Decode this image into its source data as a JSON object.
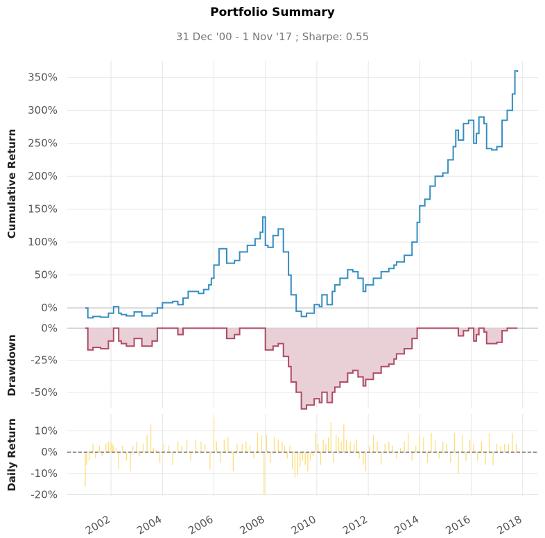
{
  "title": "Portfolio Summary",
  "subtitle": "31 Dec '00 -  1 Nov '17 ;  Sharpe: 0.55",
  "colors": {
    "cumulative": "#348dc1",
    "drawdown_line": "#af4b64",
    "drawdown_fill": "#e8d0d6",
    "daily": "#fedd78",
    "grid": "#e5e5e5",
    "zero": "#cccccc"
  },
  "x_axis": {
    "ticks": [
      2002,
      2004,
      2006,
      2008,
      2010,
      2012,
      2014,
      2016,
      2018
    ],
    "tick_labels": [
      "2002",
      "2004",
      "2006",
      "2008",
      "2010",
      "2012",
      "2014",
      "2016",
      "2018"
    ],
    "range": [
      2000.3,
      2018.6
    ]
  },
  "chart_data": [
    {
      "type": "line",
      "ylabel": "Cumulative Return",
      "yticks": [
        0,
        50,
        100,
        150,
        200,
        250,
        300,
        350
      ],
      "ytick_labels": [
        "0%",
        "50%",
        "100%",
        "150%",
        "200%",
        "250%",
        "300%",
        "350%"
      ],
      "ylim": [
        -23,
        375
      ],
      "series": [
        {
          "x": [
            2001.0,
            2001.1,
            2001.3,
            2001.6,
            2001.9,
            2002.1,
            2002.3,
            2002.4,
            2002.6,
            2002.9,
            2003.2,
            2003.6,
            2003.8,
            2004.0,
            2004.4,
            2004.6,
            2004.8,
            2005.0,
            2005.4,
            2005.6,
            2005.8,
            2005.9,
            2006.0,
            2006.2,
            2006.5,
            2006.8,
            2007.0,
            2007.3,
            2007.6,
            2007.8,
            2007.9,
            2008.0,
            2008.1,
            2008.3,
            2008.5,
            2008.7,
            2008.9,
            2009.0,
            2009.2,
            2009.4,
            2009.6,
            2009.9,
            2010.1,
            2010.2,
            2010.4,
            2010.6,
            2010.7,
            2010.9,
            2011.2,
            2011.4,
            2011.6,
            2011.8,
            2011.9,
            2012.2,
            2012.5,
            2012.8,
            2013.0,
            2013.1,
            2013.4,
            2013.7,
            2013.9,
            2014.0,
            2014.2,
            2014.4,
            2014.6,
            2014.9,
            2015.1,
            2015.3,
            2015.4,
            2015.5,
            2015.7,
            2015.9,
            2016.1,
            2016.2,
            2016.3,
            2016.5,
            2016.6,
            2016.8,
            2017.0,
            2017.2,
            2017.4,
            2017.6,
            2017.7,
            2017.8
          ],
          "y": [
            0,
            -15,
            -13,
            -14,
            -8,
            2,
            -8,
            -10,
            -12,
            -6,
            -12,
            -8,
            0,
            8,
            10,
            5,
            15,
            25,
            22,
            28,
            35,
            45,
            65,
            90,
            68,
            72,
            85,
            95,
            105,
            115,
            138,
            95,
            92,
            110,
            120,
            85,
            50,
            20,
            -5,
            -13,
            -8,
            5,
            2,
            20,
            5,
            25,
            35,
            45,
            58,
            55,
            45,
            25,
            35,
            45,
            55,
            60,
            65,
            70,
            80,
            100,
            130,
            155,
            165,
            185,
            200,
            205,
            225,
            245,
            270,
            255,
            280,
            285,
            250,
            265,
            290,
            280,
            242,
            240,
            245,
            285,
            300,
            325,
            360,
            358
          ]
        }
      ]
    },
    {
      "type": "area",
      "ylabel": "Drawdown",
      "yticks": [
        0,
        -25,
        -50
      ],
      "ytick_labels": [
        "0%",
        "-25%",
        "-50%"
      ],
      "ylim": [
        -62,
        4
      ],
      "series": [
        {
          "x": [
            2001.0,
            2001.1,
            2001.3,
            2001.6,
            2001.9,
            2002.1,
            2002.3,
            2002.4,
            2002.6,
            2002.9,
            2003.2,
            2003.6,
            2003.8,
            2004.0,
            2004.4,
            2004.6,
            2004.8,
            2005.0,
            2005.4,
            2005.6,
            2005.8,
            2005.9,
            2006.0,
            2006.2,
            2006.5,
            2006.8,
            2007.0,
            2007.3,
            2007.6,
            2007.8,
            2007.9,
            2008.0,
            2008.1,
            2008.3,
            2008.5,
            2008.7,
            2008.9,
            2009.0,
            2009.2,
            2009.4,
            2009.6,
            2009.9,
            2010.1,
            2010.2,
            2010.4,
            2010.6,
            2010.7,
            2010.9,
            2011.2,
            2011.4,
            2011.6,
            2011.8,
            2011.9,
            2012.2,
            2012.5,
            2012.8,
            2013.0,
            2013.1,
            2013.4,
            2013.7,
            2013.9,
            2014.0,
            2014.2,
            2014.4,
            2014.6,
            2014.9,
            2015.1,
            2015.3,
            2015.4,
            2015.5,
            2015.7,
            2015.9,
            2016.1,
            2016.2,
            2016.3,
            2016.5,
            2016.6,
            2016.8,
            2017.0,
            2017.2,
            2017.4,
            2017.6,
            2017.7,
            2017.8
          ],
          "y": [
            0,
            -17,
            -15,
            -16,
            -10,
            0,
            -10,
            -12,
            -14,
            -8,
            -14,
            -10,
            0,
            0,
            0,
            -5,
            0,
            0,
            0,
            0,
            0,
            0,
            0,
            0,
            -8,
            -5,
            0,
            0,
            0,
            0,
            0,
            -17,
            -17,
            -14,
            -12,
            -22,
            -30,
            -42,
            -50,
            -63,
            -60,
            -55,
            -58,
            -50,
            -58,
            -50,
            -46,
            -42,
            -35,
            -33,
            -38,
            -45,
            -40,
            -35,
            -30,
            -28,
            -24,
            -20,
            -16,
            -8,
            0,
            0,
            0,
            0,
            0,
            0,
            0,
            0,
            0,
            -6,
            -2,
            0,
            -10,
            -5,
            0,
            -3,
            -12,
            -12,
            -11,
            -2,
            0,
            0,
            0,
            0
          ]
        }
      ]
    },
    {
      "type": "bar",
      "ylabel": "Daily Return",
      "yticks": [
        10,
        0,
        -10,
        -20
      ],
      "ytick_labels": [
        "10%",
        "0%",
        "-10%",
        "-20%"
      ],
      "ylim": [
        -20.5,
        18
      ],
      "series": [
        {
          "x": [
            2001.0,
            2001.05,
            2001.15,
            2001.3,
            2001.4,
            2001.55,
            2001.65,
            2001.8,
            2001.9,
            2002.0,
            2002.05,
            2002.1,
            2002.2,
            2002.3,
            2002.45,
            2002.6,
            2002.75,
            2002.85,
            2003.0,
            2003.1,
            2003.25,
            2003.4,
            2003.55,
            2003.65,
            2003.75,
            2003.9,
            2004.05,
            2004.25,
            2004.4,
            2004.6,
            2004.75,
            2004.95,
            2005.1,
            2005.3,
            2005.5,
            2005.65,
            2005.85,
            2006.0,
            2006.1,
            2006.25,
            2006.4,
            2006.55,
            2006.75,
            2006.9,
            2007.1,
            2007.25,
            2007.4,
            2007.55,
            2007.7,
            2007.85,
            2007.95,
            2008.05,
            2008.2,
            2008.35,
            2008.5,
            2008.65,
            2008.75,
            2008.85,
            2008.95,
            2009.05,
            2009.15,
            2009.25,
            2009.35,
            2009.45,
            2009.55,
            2009.65,
            2009.75,
            2009.85,
            2009.95,
            2010.05,
            2010.15,
            2010.25,
            2010.35,
            2010.45,
            2010.55,
            2010.65,
            2010.75,
            2010.85,
            2010.95,
            2011.05,
            2011.15,
            2011.3,
            2011.45,
            2011.55,
            2011.65,
            2011.8,
            2011.9,
            2012.05,
            2012.2,
            2012.35,
            2012.5,
            2012.65,
            2012.8,
            2012.95,
            2013.1,
            2013.25,
            2013.4,
            2013.55,
            2013.7,
            2013.85,
            2014.0,
            2014.15,
            2014.3,
            2014.45,
            2014.6,
            2014.75,
            2014.9,
            2015.05,
            2015.2,
            2015.35,
            2015.5,
            2015.65,
            2015.8,
            2015.95,
            2016.1,
            2016.25,
            2016.4,
            2016.55,
            2016.7,
            2016.85,
            2017.0,
            2017.15,
            2017.3,
            2017.45,
            2017.6,
            2017.75
          ],
          "y": [
            -16,
            -6,
            -4,
            4,
            -3,
            3,
            -2,
            4,
            5,
            5,
            4,
            3,
            2,
            -8,
            3,
            -4,
            -9,
            3,
            5,
            -2,
            4,
            8,
            13,
            2,
            1,
            -5,
            4,
            3,
            -6,
            5,
            3,
            6,
            -4,
            6,
            5,
            4,
            -8,
            16,
            5,
            -5,
            6,
            7,
            -9,
            4,
            4,
            5,
            3,
            -3,
            9,
            8,
            -20,
            8,
            -5,
            7,
            6,
            5,
            3,
            -3,
            3,
            -8,
            -12,
            -11,
            -7,
            -4,
            -6,
            -9,
            -4,
            -2,
            9,
            4,
            -6,
            6,
            4,
            7,
            14,
            -5,
            8,
            7,
            5,
            13,
            6,
            5,
            4,
            6,
            -3,
            -6,
            -9,
            3,
            8,
            5,
            -6,
            4,
            5,
            3,
            -3,
            2,
            5,
            9,
            -4,
            3,
            8,
            7,
            -5,
            9,
            6,
            -3,
            5,
            4,
            -5,
            9,
            -10,
            8,
            -4,
            6,
            4,
            -4,
            5,
            -6,
            9,
            -6,
            4,
            3,
            4,
            4,
            9,
            4
          ]
        }
      ]
    }
  ]
}
